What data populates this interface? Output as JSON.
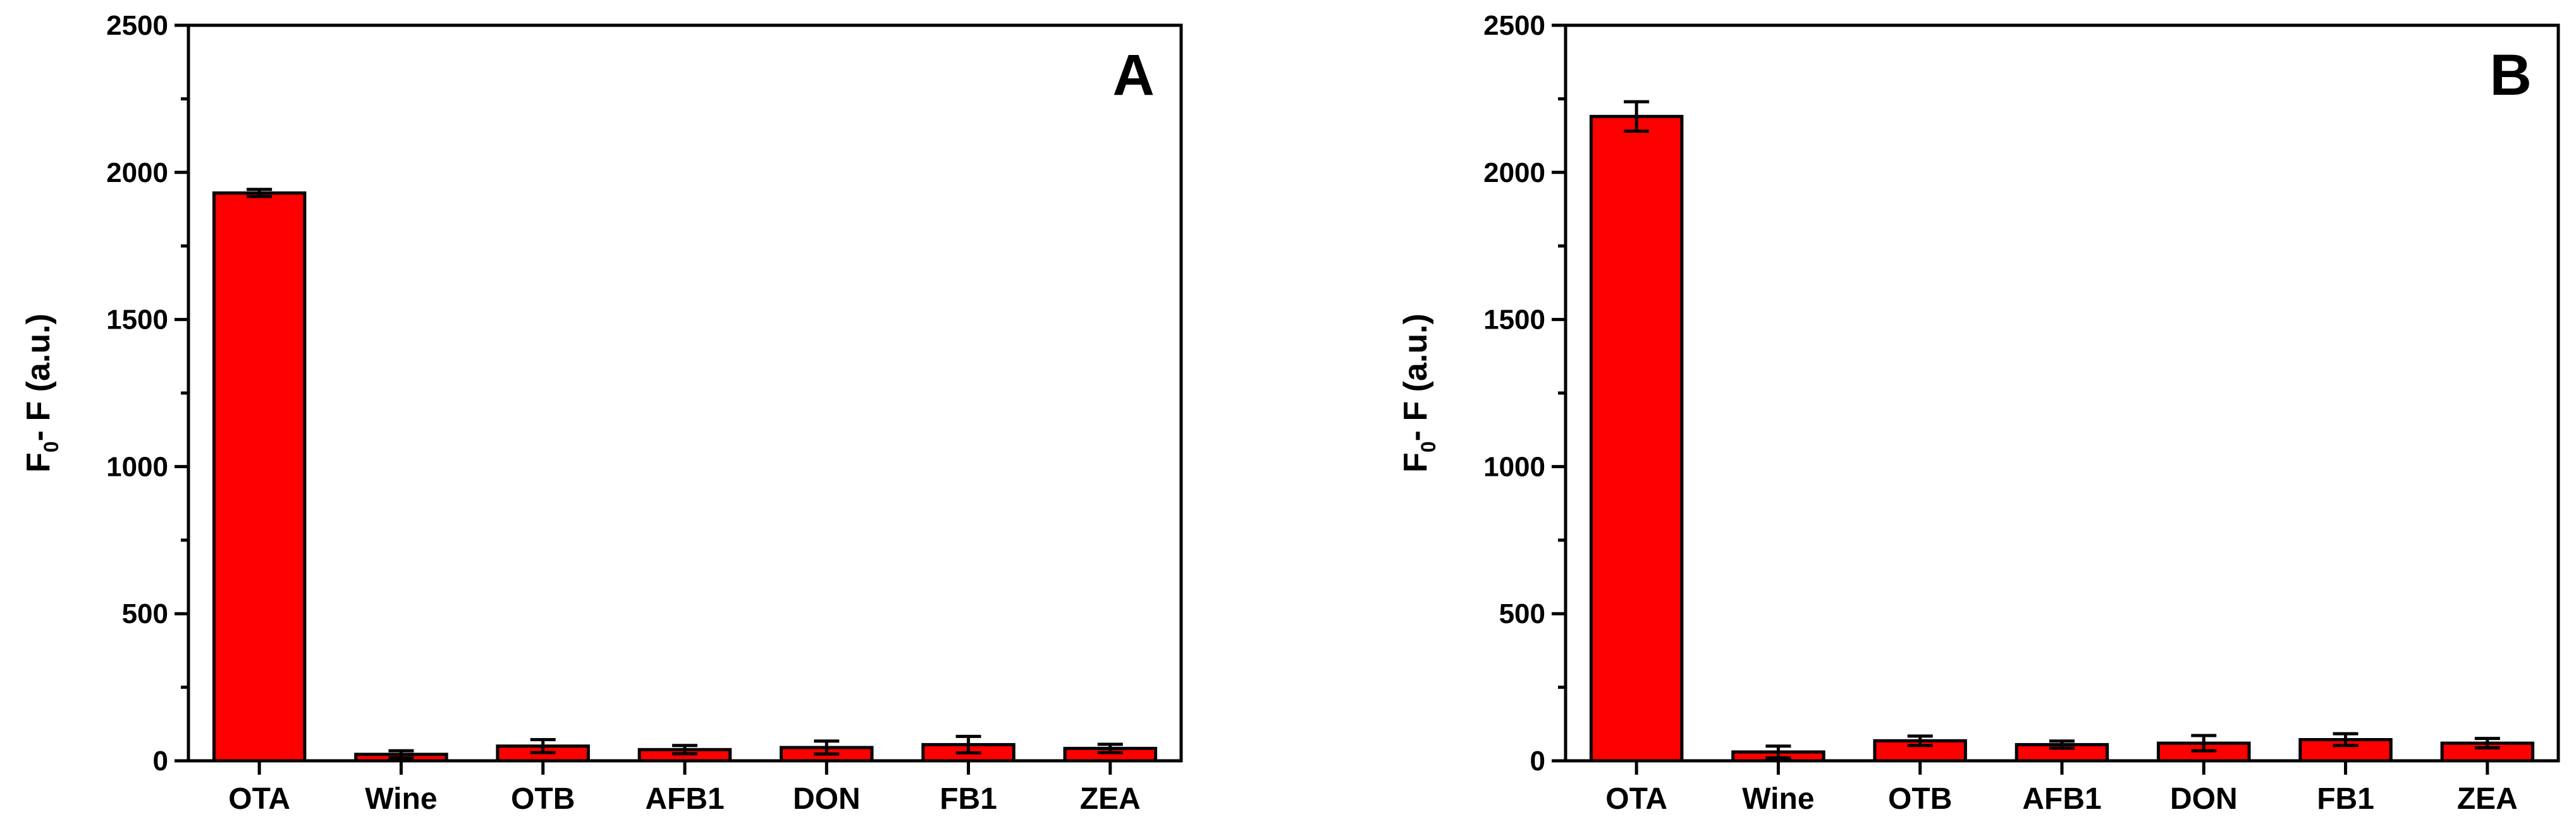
{
  "chart_data": [
    {
      "type": "bar",
      "panel_label": "A",
      "categories": [
        "OTA",
        "Wine",
        "OTB",
        "AFB1",
        "DON",
        "FB1",
        "ZEA"
      ],
      "values": [
        1930,
        22,
        50,
        38,
        45,
        55,
        42
      ],
      "errors": [
        12,
        12,
        22,
        14,
        22,
        28,
        14
      ],
      "ylabel_main": "F",
      "ylabel_sub": "0",
      "ylabel_rest": "- F  (a.u.)",
      "xlabel": "",
      "ylim": [
        0,
        2500
      ],
      "yticks": [
        0,
        500,
        1000,
        1500,
        2000,
        2500
      ],
      "bar_color": "#ff0000"
    },
    {
      "type": "bar",
      "panel_label": "B",
      "categories": [
        "OTA",
        "Wine",
        "OTB",
        "AFB1",
        "DON",
        "FB1",
        "ZEA"
      ],
      "values": [
        2190,
        30,
        68,
        55,
        60,
        72,
        60
      ],
      "errors": [
        50,
        20,
        16,
        12,
        26,
        20,
        16
      ],
      "ylabel_main": "F",
      "ylabel_sub": "0",
      "ylabel_rest": "- F  (a.u.)",
      "xlabel": "",
      "ylim": [
        0,
        2500
      ],
      "yticks": [
        0,
        500,
        1000,
        1500,
        2000,
        2500
      ],
      "bar_color": "#ff0000"
    }
  ]
}
